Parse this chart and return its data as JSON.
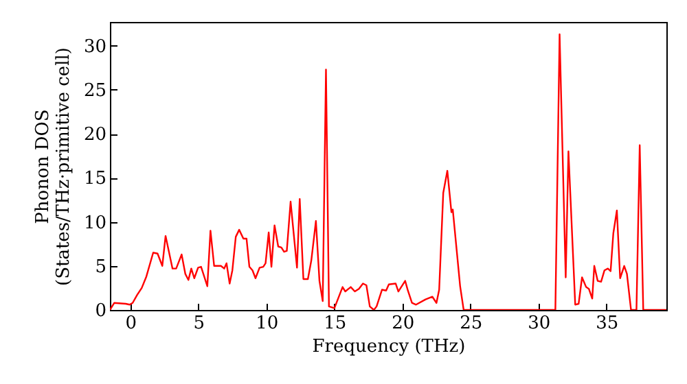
{
  "chart_data": {
    "type": "line",
    "xlabel": "Frequency (THz)",
    "ylabel": "Phonon DOS\n(States/THz·primitive cell)",
    "x": [
      -1.5,
      -1.18,
      -0.34,
      -0.05,
      0.17,
      0.5,
      0.84,
      1.18,
      1.68,
      2.0,
      2.35,
      2.59,
      3.1,
      3.37,
      3.77,
      4.04,
      4.27,
      4.48,
      4.7,
      4.98,
      5.2,
      5.66,
      5.89,
      6.16,
      6.66,
      6.9,
      7.07,
      7.3,
      7.5,
      7.75,
      8.0,
      8.31,
      8.54,
      8.75,
      8.98,
      9.2,
      9.5,
      9.77,
      9.94,
      10.17,
      10.37,
      10.6,
      10.87,
      11.1,
      11.3,
      11.5,
      11.78,
      12.25,
      12.45,
      12.72,
      13.05,
      13.3,
      13.64,
      13.9,
      14.14,
      14.38,
      14.6,
      15.0,
      15.6,
      15.8,
      16.2,
      16.5,
      16.8,
      17.1,
      17.35,
      17.6,
      17.9,
      18.1,
      18.5,
      18.8,
      19.0,
      19.5,
      19.7,
      20.2,
      20.4,
      20.7,
      21.0,
      21.7,
      22.2,
      22.5,
      22.7,
      23.0,
      23.3,
      23.6,
      23.7,
      24.24,
      24.5,
      31.24,
      31.55,
      32.0,
      32.2,
      32.7,
      32.95,
      33.2,
      33.5,
      33.7,
      33.95,
      34.1,
      34.35,
      34.6,
      34.85,
      35.1,
      35.3,
      35.5,
      35.76,
      36.0,
      36.3,
      36.5,
      36.8,
      37.2,
      37.44,
      37.7,
      39.4
    ],
    "series": [
      {
        "color": "#ff0000",
        "values": [
          0,
          0.8,
          0.7,
          0.6,
          0.8,
          1.7,
          2.5,
          3.8,
          6.5,
          6.4,
          5.0,
          8.4,
          4.7,
          4.7,
          6.3,
          4.1,
          3.4,
          4.7,
          3.6,
          4.8,
          4.9,
          2.7,
          9.0,
          5.0,
          5.0,
          4.7,
          5.3,
          3.0,
          4.5,
          8.3,
          9.1,
          8.1,
          8.1,
          4.9,
          4.5,
          3.6,
          4.8,
          4.9,
          5.3,
          8.8,
          4.9,
          9.6,
          7.2,
          7.1,
          6.6,
          6.7,
          12.3,
          4.8,
          12.6,
          3.5,
          3.5,
          5.6,
          10.1,
          3.3,
          1.0,
          27.3,
          0.4,
          0.2,
          2.6,
          2.1,
          2.6,
          2.1,
          2.4,
          3.0,
          2.8,
          0.4,
          0.0,
          0.4,
          2.3,
          2.2,
          2.9,
          3.0,
          2.1,
          3.3,
          2.2,
          0.8,
          0.6,
          1.2,
          1.5,
          0.8,
          2.3,
          13.3,
          15.8,
          11.1,
          11.4,
          2.7,
          0,
          0,
          31.3,
          3.7,
          18.0,
          0.6,
          0.7,
          3.7,
          2.6,
          2.4,
          1.3,
          5.0,
          3.3,
          3.2,
          4.5,
          4.7,
          4.4,
          8.7,
          11.3,
          3.6,
          5.0,
          4.1,
          0,
          0,
          18.7,
          0,
          0
        ]
      }
    ],
    "xlim": [
      -1.5,
      39.4
    ],
    "xticks": [
      0,
      5,
      10,
      15,
      20,
      25,
      30,
      35
    ],
    "ylim": [
      0,
      32.7
    ],
    "yticks": [
      0,
      5,
      10,
      15,
      20,
      25,
      30
    ],
    "grid": false,
    "marker": "none",
    "line_style": "solid"
  }
}
